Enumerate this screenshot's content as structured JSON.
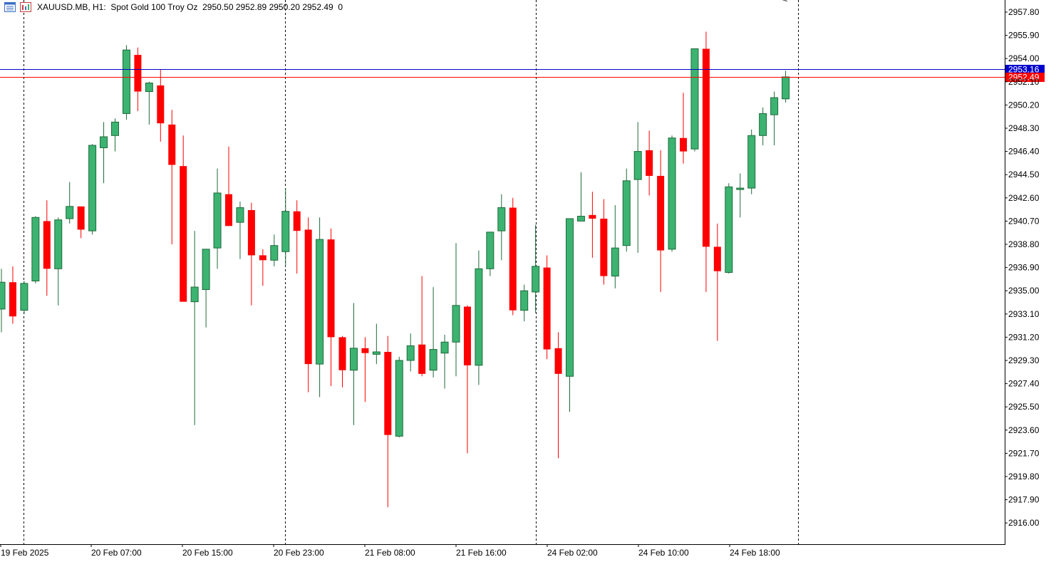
{
  "header": {
    "symbol": "XAUUSD.MB",
    "timeframe": "H1:",
    "description": "Spot Gold 100 Troy Oz",
    "open": "2950.50",
    "high": "2952.89",
    "low": "2950.20",
    "close": "2952.49",
    "volume": "0"
  },
  "colors": {
    "bull": "#3cb371",
    "bear": "#ff0000",
    "bid_line": "#ff0000",
    "ask_line": "#0000cd",
    "grid": "#000000"
  },
  "icons": [
    "chart-list-icon",
    "chart-window-icon"
  ],
  "chart_data": {
    "type": "candlestick",
    "title": "XAUUSD.MB, H1: Spot Gold 100 Troy Oz",
    "ylim": [
      2914.4,
      2958.8
    ],
    "y_ticks": [
      "2957.80",
      "2955.90",
      "2954.00",
      "2952.10",
      "2950.20",
      "2948.30",
      "2946.40",
      "2944.50",
      "2942.60",
      "2940.70",
      "2938.80",
      "2936.90",
      "2935.00",
      "2933.10",
      "2931.20",
      "2929.30",
      "2927.40",
      "2925.50",
      "2923.60",
      "2921.70",
      "2919.80",
      "2917.90",
      "2916.00"
    ],
    "x_ticks": [
      "19 Feb 2025",
      "20 Feb 07:00",
      "20 Feb 15:00",
      "20 Feb 23:00",
      "21 Feb 08:00",
      "21 Feb 16:00",
      "24 Feb 02:00",
      "24 Feb 10:00",
      "24 Feb 18:00"
    ],
    "price_labels": [
      {
        "name": "ask",
        "value": 2953.16,
        "label": "2953.16"
      },
      {
        "name": "bid",
        "value": 2952.49,
        "label": "2952.49"
      }
    ],
    "candles": [
      {
        "o": 2933.5,
        "h": 2936.8,
        "l": 2931.6,
        "c": 2935.7
      },
      {
        "o": 2935.7,
        "h": 2937.0,
        "l": 2932.3,
        "c": 2932.9
      },
      {
        "o": 2933.4,
        "h": 2935.8,
        "l": 2933.1,
        "c": 2935.6
      },
      {
        "o": 2935.8,
        "h": 2941.1,
        "l": 2935.6,
        "c": 2941.0
      },
      {
        "o": 2940.7,
        "h": 2942.4,
        "l": 2934.6,
        "c": 2936.8
      },
      {
        "o": 2936.8,
        "h": 2941.0,
        "l": 2933.8,
        "c": 2940.8
      },
      {
        "o": 2940.9,
        "h": 2943.9,
        "l": 2940.5,
        "c": 2941.9
      },
      {
        "o": 2941.9,
        "h": 2941.9,
        "l": 2939.3,
        "c": 2940.0
      },
      {
        "o": 2939.9,
        "h": 2947.0,
        "l": 2939.6,
        "c": 2946.9
      },
      {
        "o": 2946.7,
        "h": 2948.8,
        "l": 2943.8,
        "c": 2947.6
      },
      {
        "o": 2947.7,
        "h": 2949.1,
        "l": 2946.4,
        "c": 2948.8
      },
      {
        "o": 2949.5,
        "h": 2955.1,
        "l": 2949.0,
        "c": 2954.7
      },
      {
        "o": 2954.3,
        "h": 2954.9,
        "l": 2949.7,
        "c": 2951.3
      },
      {
        "o": 2951.3,
        "h": 2952.1,
        "l": 2948.6,
        "c": 2952.0
      },
      {
        "o": 2951.8,
        "h": 2953.1,
        "l": 2947.2,
        "c": 2948.7
      },
      {
        "o": 2948.6,
        "h": 2949.8,
        "l": 2938.8,
        "c": 2945.3
      },
      {
        "o": 2945.2,
        "h": 2947.7,
        "l": 2934.1,
        "c": 2934.1
      },
      {
        "o": 2934.1,
        "h": 2939.9,
        "l": 2924.0,
        "c": 2935.3
      },
      {
        "o": 2935.1,
        "h": 2938.3,
        "l": 2932.0,
        "c": 2938.4
      },
      {
        "o": 2938.5,
        "h": 2945.0,
        "l": 2936.8,
        "c": 2943.0
      },
      {
        "o": 2942.9,
        "h": 2946.8,
        "l": 2940.3,
        "c": 2940.3
      },
      {
        "o": 2940.6,
        "h": 2942.3,
        "l": 2937.6,
        "c": 2941.8
      },
      {
        "o": 2941.6,
        "h": 2942.2,
        "l": 2933.8,
        "c": 2937.9
      },
      {
        "o": 2937.9,
        "h": 2938.4,
        "l": 2935.4,
        "c": 2937.5
      },
      {
        "o": 2937.5,
        "h": 2939.6,
        "l": 2937.0,
        "c": 2938.7
      },
      {
        "o": 2938.2,
        "h": 2943.4,
        "l": 2937.0,
        "c": 2941.5
      },
      {
        "o": 2941.5,
        "h": 2942.4,
        "l": 2936.4,
        "c": 2939.9
      },
      {
        "o": 2940.0,
        "h": 2941.0,
        "l": 2926.7,
        "c": 2929.0
      },
      {
        "o": 2929.0,
        "h": 2941.0,
        "l": 2926.3,
        "c": 2939.2
      },
      {
        "o": 2939.2,
        "h": 2940.1,
        "l": 2927.2,
        "c": 2931.2
      },
      {
        "o": 2931.2,
        "h": 2931.3,
        "l": 2927.1,
        "c": 2928.5
      },
      {
        "o": 2928.5,
        "h": 2934.0,
        "l": 2924.0,
        "c": 2930.3
      },
      {
        "o": 2930.3,
        "h": 2931.2,
        "l": 2925.9,
        "c": 2929.9
      },
      {
        "o": 2929.8,
        "h": 2932.3,
        "l": 2929.0,
        "c": 2930.0
      },
      {
        "o": 2930.0,
        "h": 2931.3,
        "l": 2917.3,
        "c": 2923.2
      },
      {
        "o": 2923.1,
        "h": 2929.6,
        "l": 2923.0,
        "c": 2929.3
      },
      {
        "o": 2929.3,
        "h": 2931.5,
        "l": 2928.4,
        "c": 2930.5
      },
      {
        "o": 2930.6,
        "h": 2936.2,
        "l": 2928.0,
        "c": 2928.2
      },
      {
        "o": 2928.5,
        "h": 2935.3,
        "l": 2927.9,
        "c": 2930.2
      },
      {
        "o": 2929.9,
        "h": 2931.4,
        "l": 2927.0,
        "c": 2930.8
      },
      {
        "o": 2930.8,
        "h": 2938.9,
        "l": 2928.0,
        "c": 2933.8
      },
      {
        "o": 2933.7,
        "h": 2933.8,
        "l": 2921.7,
        "c": 2928.9
      },
      {
        "o": 2928.9,
        "h": 2938.3,
        "l": 2927.3,
        "c": 2936.8
      },
      {
        "o": 2936.8,
        "h": 2939.7,
        "l": 2936.2,
        "c": 2939.8
      },
      {
        "o": 2939.9,
        "h": 2942.9,
        "l": 2937.5,
        "c": 2941.8
      },
      {
        "o": 2941.8,
        "h": 2942.6,
        "l": 2933.0,
        "c": 2933.4
      },
      {
        "o": 2933.4,
        "h": 2935.5,
        "l": 2932.5,
        "c": 2935.0
      },
      {
        "o": 2934.9,
        "h": 2940.4,
        "l": 2933.2,
        "c": 2937.0
      },
      {
        "o": 2936.9,
        "h": 2937.9,
        "l": 2929.4,
        "c": 2930.2
      },
      {
        "o": 2930.3,
        "h": 2931.6,
        "l": 2921.3,
        "c": 2928.2
      },
      {
        "o": 2928.0,
        "h": 2940.9,
        "l": 2925.1,
        "c": 2940.9
      },
      {
        "o": 2940.7,
        "h": 2944.7,
        "l": 2940.7,
        "c": 2941.1
      },
      {
        "o": 2941.2,
        "h": 2943.1,
        "l": 2937.7,
        "c": 2940.9
      },
      {
        "o": 2940.9,
        "h": 2942.5,
        "l": 2935.5,
        "c": 2936.2
      },
      {
        "o": 2936.2,
        "h": 2942.0,
        "l": 2935.2,
        "c": 2938.5
      },
      {
        "o": 2938.7,
        "h": 2945.0,
        "l": 2938.2,
        "c": 2944.0
      },
      {
        "o": 2944.1,
        "h": 2948.8,
        "l": 2938.1,
        "c": 2946.4
      },
      {
        "o": 2946.5,
        "h": 2948.1,
        "l": 2942.8,
        "c": 2944.4
      },
      {
        "o": 2944.4,
        "h": 2946.5,
        "l": 2934.9,
        "c": 2938.3
      },
      {
        "o": 2938.4,
        "h": 2947.7,
        "l": 2938.2,
        "c": 2947.5
      },
      {
        "o": 2947.5,
        "h": 2951.2,
        "l": 2945.4,
        "c": 2946.4
      },
      {
        "o": 2946.6,
        "h": 2954.8,
        "l": 2946.4,
        "c": 2954.8
      },
      {
        "o": 2954.8,
        "h": 2956.2,
        "l": 2934.9,
        "c": 2938.6
      },
      {
        "o": 2938.6,
        "h": 2940.5,
        "l": 2930.9,
        "c": 2936.6
      },
      {
        "o": 2936.5,
        "h": 2943.8,
        "l": 2936.4,
        "c": 2943.5
      },
      {
        "o": 2943.4,
        "h": 2944.6,
        "l": 2941.0,
        "c": 2943.4
      },
      {
        "o": 2943.4,
        "h": 2948.2,
        "l": 2942.9,
        "c": 2947.7
      },
      {
        "o": 2947.7,
        "h": 2950.0,
        "l": 2946.9,
        "c": 2949.5
      },
      {
        "o": 2949.4,
        "h": 2951.3,
        "l": 2946.9,
        "c": 2950.8
      },
      {
        "o": 2950.7,
        "h": 2953.0,
        "l": 2950.4,
        "c": 2952.5
      }
    ]
  }
}
